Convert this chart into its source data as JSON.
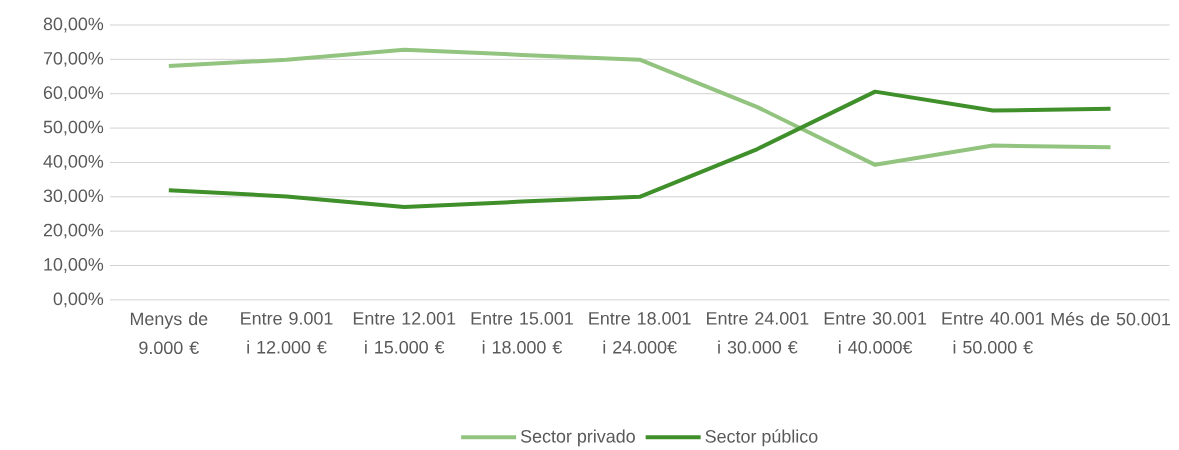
{
  "chart_data": {
    "type": "line",
    "categories": [
      "Menys de 9.000 €",
      "Entre 9.001 i 12.000 €",
      "Entre 12.001 i 15.000 €",
      "Entre 15.001 i 18.000 €",
      "Entre 18.001 i 24.000€",
      "Entre 24.001 i 30.000 €",
      "Entre 30.001 i 40.000€",
      "Entre 40.001 i 50.000 €",
      "Més de 50.001"
    ],
    "series": [
      {
        "name": "Sector privado",
        "color": "#92c47f",
        "values": [
          68.1,
          69.9,
          72.8,
          71.3,
          69.9,
          56.1,
          39.3,
          44.9,
          44.4
        ]
      },
      {
        "name": "Sector público",
        "color": "#3f8f2a",
        "values": [
          31.9,
          30.1,
          27.0,
          28.6,
          30.0,
          43.9,
          60.6,
          55.1,
          55.6
        ]
      }
    ],
    "ylim": [
      0,
      80
    ],
    "yticks": [
      {
        "value": 0,
        "label": "0,00%"
      },
      {
        "value": 10,
        "label": "10,00%"
      },
      {
        "value": 20,
        "label": "20,00%"
      },
      {
        "value": 30,
        "label": "30,00%"
      },
      {
        "value": 40,
        "label": "40,00%"
      },
      {
        "value": 50,
        "label": "50,00%"
      },
      {
        "value": 60,
        "label": "60,00%"
      },
      {
        "value": 70,
        "label": "70,00%"
      },
      {
        "value": 80,
        "label": "80,00%"
      }
    ],
    "grid": "y",
    "legend": "bottom",
    "marker": "none",
    "line_style": "solid"
  }
}
